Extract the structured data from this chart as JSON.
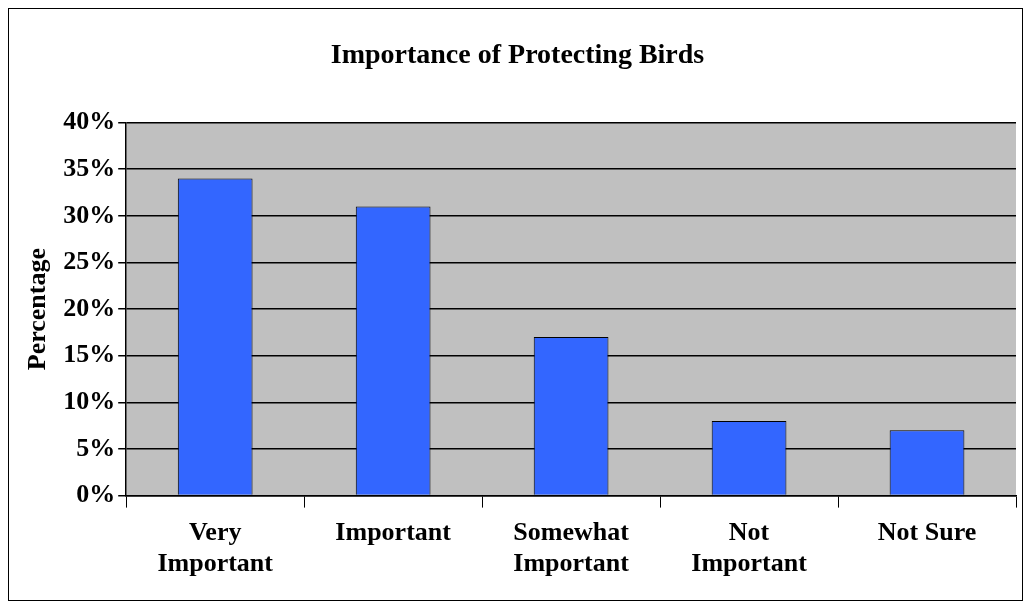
{
  "chart_data": {
    "type": "bar",
    "title": "Importance of Protecting Birds",
    "ylabel": "Percentage",
    "categories": [
      "Very Important",
      "Important",
      "Somewhat Important",
      "Not Important",
      "Not Sure"
    ],
    "values": [
      34,
      31,
      17,
      8,
      7
    ],
    "color": "#3366ff",
    "ylim": [
      0,
      40
    ],
    "yticks": [
      {
        "value": 0,
        "label": "0%"
      },
      {
        "value": 5,
        "label": "5%"
      },
      {
        "value": 10,
        "label": "10%"
      },
      {
        "value": 15,
        "label": "15%"
      },
      {
        "value": 20,
        "label": "20%"
      },
      {
        "value": 25,
        "label": "25%"
      },
      {
        "value": 30,
        "label": "30%"
      },
      {
        "value": 35,
        "label": "35%"
      },
      {
        "value": 40,
        "label": "40%"
      }
    ],
    "grid": "y",
    "legend": false
  }
}
